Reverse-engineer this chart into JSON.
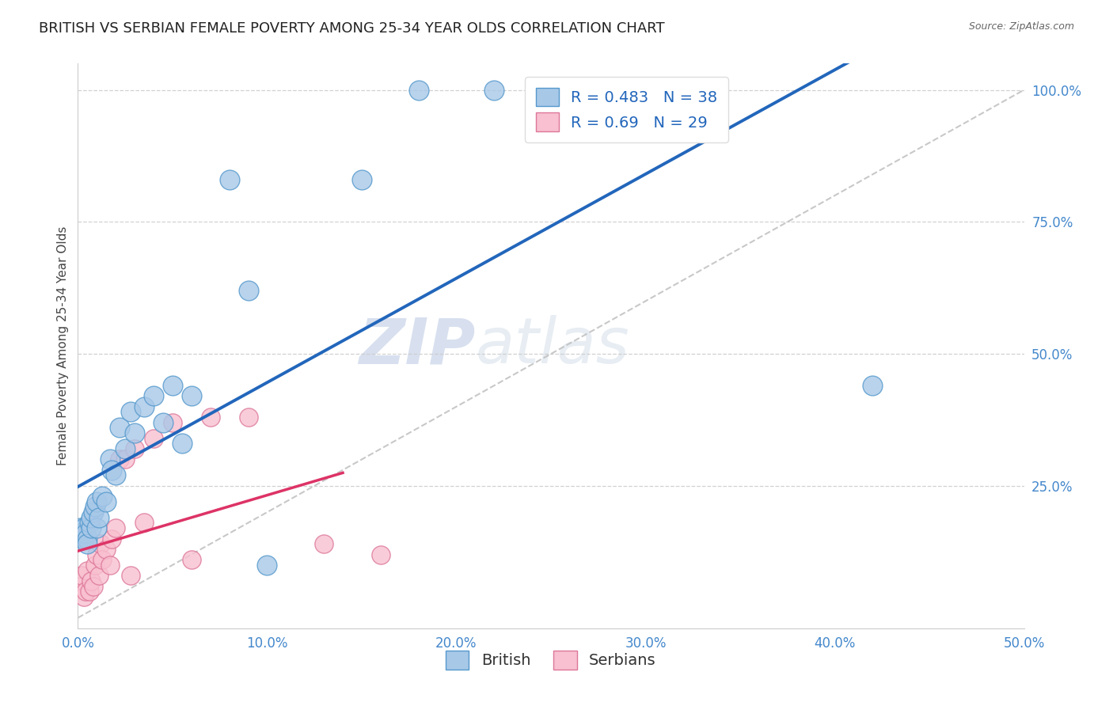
{
  "title": "BRITISH VS SERBIAN FEMALE POVERTY AMONG 25-34 YEAR OLDS CORRELATION CHART",
  "source": "Source: ZipAtlas.com",
  "ylabel": "Female Poverty Among 25-34 Year Olds",
  "xlim": [
    0.0,
    0.5
  ],
  "ylim": [
    -0.02,
    1.05
  ],
  "xticks": [
    0.0,
    0.1,
    0.2,
    0.3,
    0.4,
    0.5
  ],
  "yticks": [
    0.25,
    0.5,
    0.75,
    1.0
  ],
  "xticklabels": [
    "0.0%",
    "10.0%",
    "20.0%",
    "30.0%",
    "40.0%",
    "50.0%"
  ],
  "yticklabels": [
    "25.0%",
    "50.0%",
    "75.0%",
    "100.0%"
  ],
  "british_R": 0.483,
  "british_N": 38,
  "serbian_R": 0.69,
  "serbian_N": 29,
  "british_color": "#a8c8e8",
  "british_edge_color": "#5599cc",
  "british_line_color": "#2266bb",
  "serbian_color": "#f8c0d0",
  "serbian_edge_color": "#dd7799",
  "serbian_line_color": "#dd3366",
  "british_x": [
    0.001,
    0.002,
    0.003,
    0.003,
    0.004,
    0.005,
    0.005,
    0.006,
    0.007,
    0.007,
    0.008,
    0.009,
    0.01,
    0.01,
    0.011,
    0.013,
    0.015,
    0.017,
    0.018,
    0.02,
    0.022,
    0.025,
    0.028,
    0.03,
    0.035,
    0.04,
    0.045,
    0.05,
    0.055,
    0.06,
    0.08,
    0.09,
    0.1,
    0.15,
    0.18,
    0.22,
    0.28,
    0.42
  ],
  "british_y": [
    0.17,
    0.16,
    0.15,
    0.17,
    0.16,
    0.15,
    0.14,
    0.18,
    0.17,
    0.19,
    0.2,
    0.21,
    0.22,
    0.17,
    0.19,
    0.23,
    0.22,
    0.3,
    0.28,
    0.27,
    0.36,
    0.32,
    0.39,
    0.35,
    0.4,
    0.42,
    0.37,
    0.44,
    0.33,
    0.42,
    0.83,
    0.62,
    0.1,
    0.83,
    1.0,
    1.0,
    1.0,
    0.44
  ],
  "serbian_x": [
    0.001,
    0.002,
    0.003,
    0.004,
    0.005,
    0.006,
    0.007,
    0.008,
    0.009,
    0.01,
    0.011,
    0.012,
    0.013,
    0.015,
    0.017,
    0.018,
    0.02,
    0.022,
    0.025,
    0.028,
    0.03,
    0.035,
    0.04,
    0.05,
    0.06,
    0.07,
    0.09,
    0.13,
    0.16
  ],
  "serbian_y": [
    0.06,
    0.08,
    0.04,
    0.05,
    0.09,
    0.05,
    0.07,
    0.06,
    0.1,
    0.12,
    0.08,
    0.14,
    0.11,
    0.13,
    0.1,
    0.15,
    0.17,
    0.3,
    0.3,
    0.08,
    0.32,
    0.18,
    0.34,
    0.37,
    0.11,
    0.38,
    0.38,
    0.14,
    0.12
  ],
  "watermark_zip": "ZIP",
  "watermark_atlas": "atlas",
  "background_color": "#ffffff",
  "grid_color": "#cccccc",
  "tick_color": "#4488cc",
  "title_fontsize": 13,
  "axis_label_fontsize": 11,
  "tick_fontsize": 12,
  "legend_fontsize": 14
}
